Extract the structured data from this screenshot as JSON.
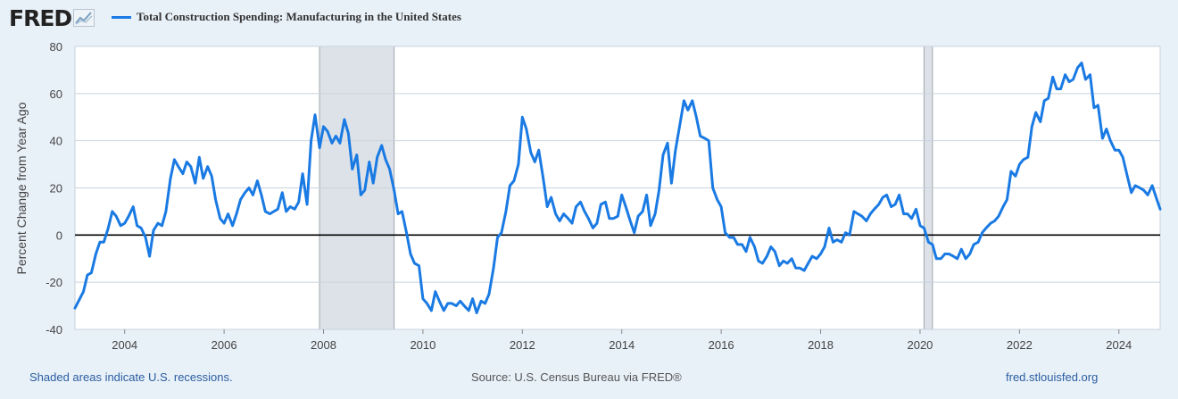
{
  "header": {
    "logo_text": "FRED"
  },
  "chart_data": {
    "type": "line",
    "ylabel": "Percent Change from Year Ago",
    "ylim": [
      -40,
      80
    ],
    "y_ticks": [
      -40,
      -20,
      0,
      20,
      40,
      60,
      80
    ],
    "x_range": [
      2003.0,
      2024.83
    ],
    "x_ticks": [
      2004,
      2006,
      2008,
      2010,
      2012,
      2014,
      2016,
      2018,
      2020,
      2022,
      2024
    ],
    "grid": true,
    "legend_position": "top-left",
    "line_color": "#1a7ae3",
    "recessions": [
      [
        2007.92,
        2009.42
      ],
      [
        2020.08,
        2020.25
      ]
    ],
    "series": [
      {
        "name": "Total Construction Spending: Manufacturing in the United States",
        "points": [
          [
            2003.0,
            -31
          ],
          [
            2003.17,
            -24
          ],
          [
            2003.25,
            -17
          ],
          [
            2003.33,
            -16
          ],
          [
            2003.42,
            -8
          ],
          [
            2003.5,
            -3
          ],
          [
            2003.58,
            -3
          ],
          [
            2003.67,
            3
          ],
          [
            2003.75,
            10
          ],
          [
            2003.83,
            8
          ],
          [
            2003.92,
            4
          ],
          [
            2004.0,
            5
          ],
          [
            2004.08,
            8
          ],
          [
            2004.17,
            12
          ],
          [
            2004.25,
            4
          ],
          [
            2004.33,
            3
          ],
          [
            2004.42,
            -1
          ],
          [
            2004.5,
            -9
          ],
          [
            2004.58,
            2
          ],
          [
            2004.67,
            5
          ],
          [
            2004.75,
            4
          ],
          [
            2004.83,
            10
          ],
          [
            2004.92,
            24
          ],
          [
            2005.0,
            32
          ],
          [
            2005.08,
            29
          ],
          [
            2005.17,
            26
          ],
          [
            2005.25,
            31
          ],
          [
            2005.33,
            29
          ],
          [
            2005.42,
            22
          ],
          [
            2005.5,
            33
          ],
          [
            2005.58,
            24
          ],
          [
            2005.67,
            29
          ],
          [
            2005.75,
            25
          ],
          [
            2005.83,
            15
          ],
          [
            2005.92,
            7
          ],
          [
            2006.0,
            5
          ],
          [
            2006.08,
            9
          ],
          [
            2006.17,
            4
          ],
          [
            2006.25,
            9
          ],
          [
            2006.33,
            15
          ],
          [
            2006.42,
            18
          ],
          [
            2006.5,
            20
          ],
          [
            2006.58,
            17
          ],
          [
            2006.67,
            23
          ],
          [
            2006.75,
            17
          ],
          [
            2006.83,
            10
          ],
          [
            2006.92,
            9
          ],
          [
            2007.0,
            10
          ],
          [
            2007.08,
            11
          ],
          [
            2007.17,
            18
          ],
          [
            2007.25,
            10
          ],
          [
            2007.33,
            12
          ],
          [
            2007.42,
            11
          ],
          [
            2007.5,
            14
          ],
          [
            2007.58,
            26
          ],
          [
            2007.67,
            13
          ],
          [
            2007.75,
            40
          ],
          [
            2007.83,
            51
          ],
          [
            2007.92,
            37
          ],
          [
            2008.0,
            46
          ],
          [
            2008.08,
            44
          ],
          [
            2008.17,
            39
          ],
          [
            2008.25,
            42
          ],
          [
            2008.33,
            39
          ],
          [
            2008.42,
            49
          ],
          [
            2008.5,
            43
          ],
          [
            2008.58,
            28
          ],
          [
            2008.67,
            34
          ],
          [
            2008.75,
            17
          ],
          [
            2008.83,
            19
          ],
          [
            2008.92,
            31
          ],
          [
            2009.0,
            22
          ],
          [
            2009.08,
            33
          ],
          [
            2009.17,
            38
          ],
          [
            2009.25,
            32
          ],
          [
            2009.33,
            28
          ],
          [
            2009.42,
            19
          ],
          [
            2009.5,
            9
          ],
          [
            2009.58,
            10
          ],
          [
            2009.67,
            1
          ],
          [
            2009.75,
            -8
          ],
          [
            2009.83,
            -12
          ],
          [
            2009.92,
            -13
          ],
          [
            2010.0,
            -27
          ],
          [
            2010.08,
            -29
          ],
          [
            2010.17,
            -32
          ],
          [
            2010.25,
            -24
          ],
          [
            2010.33,
            -28
          ],
          [
            2010.42,
            -32
          ],
          [
            2010.5,
            -29
          ],
          [
            2010.58,
            -29
          ],
          [
            2010.67,
            -30
          ],
          [
            2010.75,
            -28
          ],
          [
            2010.83,
            -30
          ],
          [
            2010.92,
            -32
          ],
          [
            2011.0,
            -27
          ],
          [
            2011.08,
            -33
          ],
          [
            2011.17,
            -28
          ],
          [
            2011.25,
            -29
          ],
          [
            2011.33,
            -25
          ],
          [
            2011.42,
            -14
          ],
          [
            2011.5,
            -1
          ],
          [
            2011.58,
            1
          ],
          [
            2011.67,
            10
          ],
          [
            2011.75,
            21
          ],
          [
            2011.83,
            23
          ],
          [
            2011.92,
            30
          ],
          [
            2012.0,
            50
          ],
          [
            2012.08,
            45
          ],
          [
            2012.17,
            35
          ],
          [
            2012.25,
            31
          ],
          [
            2012.33,
            36
          ],
          [
            2012.42,
            24
          ],
          [
            2012.5,
            12
          ],
          [
            2012.58,
            16
          ],
          [
            2012.67,
            9
          ],
          [
            2012.75,
            6
          ],
          [
            2012.83,
            9
          ],
          [
            2012.92,
            7
          ],
          [
            2013.0,
            5
          ],
          [
            2013.08,
            12
          ],
          [
            2013.17,
            14
          ],
          [
            2013.25,
            10
          ],
          [
            2013.33,
            7
          ],
          [
            2013.42,
            3
          ],
          [
            2013.5,
            5
          ],
          [
            2013.58,
            13
          ],
          [
            2013.67,
            14
          ],
          [
            2013.75,
            7
          ],
          [
            2013.83,
            7
          ],
          [
            2013.92,
            8
          ],
          [
            2014.0,
            17
          ],
          [
            2014.08,
            12
          ],
          [
            2014.17,
            6
          ],
          [
            2014.25,
            1
          ],
          [
            2014.33,
            8
          ],
          [
            2014.42,
            10
          ],
          [
            2014.5,
            17
          ],
          [
            2014.58,
            4
          ],
          [
            2014.67,
            9
          ],
          [
            2014.75,
            19
          ],
          [
            2014.83,
            34
          ],
          [
            2014.92,
            39
          ],
          [
            2015.0,
            22
          ],
          [
            2015.08,
            36
          ],
          [
            2015.17,
            47
          ],
          [
            2015.25,
            57
          ],
          [
            2015.33,
            53
          ],
          [
            2015.42,
            57
          ],
          [
            2015.5,
            50
          ],
          [
            2015.58,
            42
          ],
          [
            2015.67,
            41
          ],
          [
            2015.75,
            40
          ],
          [
            2015.83,
            20
          ],
          [
            2015.92,
            15
          ],
          [
            2016.0,
            12
          ],
          [
            2016.08,
            1
          ],
          [
            2016.17,
            -1
          ],
          [
            2016.25,
            -1
          ],
          [
            2016.33,
            -4
          ],
          [
            2016.42,
            -4
          ],
          [
            2016.5,
            -7
          ],
          [
            2016.58,
            -1
          ],
          [
            2016.67,
            -5
          ],
          [
            2016.75,
            -11
          ],
          [
            2016.83,
            -12
          ],
          [
            2016.92,
            -9
          ],
          [
            2017.0,
            -5
          ],
          [
            2017.08,
            -7
          ],
          [
            2017.17,
            -13
          ],
          [
            2017.25,
            -11
          ],
          [
            2017.33,
            -12
          ],
          [
            2017.42,
            -10
          ],
          [
            2017.5,
            -14
          ],
          [
            2017.58,
            -14
          ],
          [
            2017.67,
            -15
          ],
          [
            2017.75,
            -12
          ],
          [
            2017.83,
            -9
          ],
          [
            2017.92,
            -10
          ],
          [
            2018.0,
            -8
          ],
          [
            2018.08,
            -5
          ],
          [
            2018.17,
            3
          ],
          [
            2018.25,
            -3
          ],
          [
            2018.33,
            -2
          ],
          [
            2018.42,
            -3
          ],
          [
            2018.5,
            1
          ],
          [
            2018.58,
            0
          ],
          [
            2018.67,
            10
          ],
          [
            2018.75,
            9
          ],
          [
            2018.83,
            8
          ],
          [
            2018.92,
            6
          ],
          [
            2019.0,
            9
          ],
          [
            2019.08,
            11
          ],
          [
            2019.17,
            13
          ],
          [
            2019.25,
            16
          ],
          [
            2019.33,
            17
          ],
          [
            2019.42,
            12
          ],
          [
            2019.5,
            13
          ],
          [
            2019.58,
            17
          ],
          [
            2019.67,
            9
          ],
          [
            2019.75,
            9
          ],
          [
            2019.83,
            7
          ],
          [
            2019.92,
            11
          ],
          [
            2020.0,
            4
          ],
          [
            2020.08,
            3
          ],
          [
            2020.17,
            -3
          ],
          [
            2020.25,
            -4
          ],
          [
            2020.33,
            -10
          ],
          [
            2020.42,
            -10
          ],
          [
            2020.5,
            -8
          ],
          [
            2020.58,
            -8
          ],
          [
            2020.67,
            -9
          ],
          [
            2020.75,
            -10
          ],
          [
            2020.83,
            -6
          ],
          [
            2020.92,
            -10
          ],
          [
            2021.0,
            -8
          ],
          [
            2021.08,
            -4
          ],
          [
            2021.17,
            -3
          ],
          [
            2021.25,
            1
          ],
          [
            2021.33,
            3
          ],
          [
            2021.42,
            5
          ],
          [
            2021.5,
            6
          ],
          [
            2021.58,
            8
          ],
          [
            2021.67,
            12
          ],
          [
            2021.75,
            15
          ],
          [
            2021.83,
            27
          ],
          [
            2021.92,
            25
          ],
          [
            2022.0,
            30
          ],
          [
            2022.08,
            32
          ],
          [
            2022.17,
            33
          ],
          [
            2022.25,
            46
          ],
          [
            2022.33,
            52
          ],
          [
            2022.42,
            48
          ],
          [
            2022.5,
            57
          ],
          [
            2022.58,
            58
          ],
          [
            2022.67,
            67
          ],
          [
            2022.75,
            62
          ],
          [
            2022.83,
            62
          ],
          [
            2022.92,
            68
          ],
          [
            2023.0,
            65
          ],
          [
            2023.08,
            66
          ],
          [
            2023.17,
            71
          ],
          [
            2023.25,
            73
          ],
          [
            2023.33,
            66
          ],
          [
            2023.42,
            68
          ],
          [
            2023.5,
            54
          ],
          [
            2023.58,
            55
          ],
          [
            2023.67,
            41
          ],
          [
            2023.75,
            45
          ],
          [
            2023.83,
            40
          ],
          [
            2023.92,
            36
          ],
          [
            2024.0,
            36
          ],
          [
            2024.08,
            33
          ],
          [
            2024.17,
            25
          ],
          [
            2024.25,
            18
          ],
          [
            2024.33,
            21
          ],
          [
            2024.42,
            20
          ],
          [
            2024.5,
            19
          ],
          [
            2024.58,
            17
          ],
          [
            2024.67,
            21
          ],
          [
            2024.75,
            16
          ],
          [
            2024.83,
            11
          ]
        ]
      }
    ]
  },
  "footer": {
    "recession_note": "Shaded areas indicate U.S. recessions.",
    "source": "Source: U.S. Census Bureau via FRED®",
    "site": "fred.stlouisfed.org"
  }
}
